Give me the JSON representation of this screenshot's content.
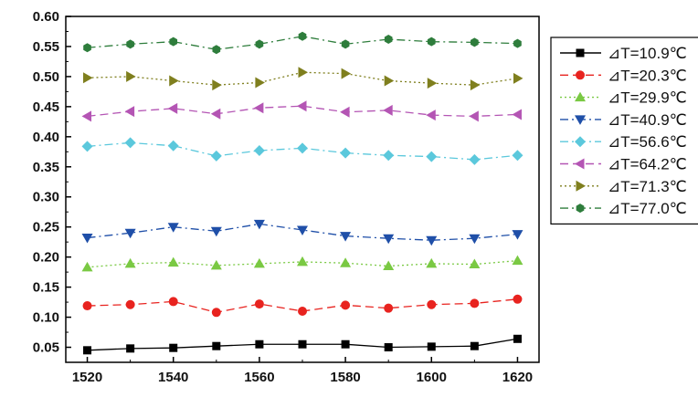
{
  "chart_data": {
    "type": "line",
    "title": "",
    "xlabel": "",
    "ylabel": "",
    "x": [
      1520,
      1530,
      1540,
      1550,
      1560,
      1570,
      1580,
      1590,
      1600,
      1610,
      1620
    ],
    "xlim": [
      1515,
      1625
    ],
    "ylim": [
      0.025,
      0.6
    ],
    "xticks": [
      1520,
      1540,
      1560,
      1580,
      1600,
      1620
    ],
    "yticks": [
      0.05,
      0.1,
      0.15,
      0.2,
      0.25,
      0.3,
      0.35,
      0.4,
      0.45,
      0.5,
      0.55,
      0.6
    ],
    "grid": false,
    "legend_position": "right",
    "series": [
      {
        "name": "⊿T=10.9℃",
        "color": "#000000",
        "marker": "square",
        "dash": "solid",
        "values": [
          0.045,
          0.048,
          0.049,
          0.052,
          0.055,
          0.055,
          0.055,
          0.05,
          0.051,
          0.052,
          0.064
        ]
      },
      {
        "name": "⊿T=20.3℃",
        "color": "#e8231f",
        "marker": "circle",
        "dash": "dash",
        "values": [
          0.119,
          0.121,
          0.126,
          0.108,
          0.122,
          0.11,
          0.12,
          0.115,
          0.121,
          0.123,
          0.13
        ]
      },
      {
        "name": "⊿T=29.9℃",
        "color": "#7ac943",
        "marker": "triangle-up",
        "dash": "dot",
        "values": [
          0.183,
          0.189,
          0.191,
          0.186,
          0.189,
          0.192,
          0.19,
          0.185,
          0.189,
          0.188,
          0.194
        ]
      },
      {
        "name": "⊿T=40.9℃",
        "color": "#1f4fa8",
        "marker": "triangle-down",
        "dash": "dashdot",
        "values": [
          0.232,
          0.24,
          0.25,
          0.243,
          0.255,
          0.245,
          0.235,
          0.231,
          0.228,
          0.231,
          0.238
        ]
      },
      {
        "name": "⊿T=56.6℃",
        "color": "#5bc8dc",
        "marker": "diamond",
        "dash": "dashdot",
        "values": [
          0.384,
          0.39,
          0.385,
          0.368,
          0.377,
          0.381,
          0.373,
          0.369,
          0.367,
          0.362,
          0.369
        ]
      },
      {
        "name": "⊿T=64.2℃",
        "color": "#b455b4",
        "marker": "triangle-left",
        "dash": "dash",
        "values": [
          0.434,
          0.442,
          0.447,
          0.438,
          0.448,
          0.451,
          0.441,
          0.444,
          0.436,
          0.434,
          0.437
        ]
      },
      {
        "name": "⊿T=71.3℃",
        "color": "#7f7f1e",
        "marker": "triangle-right",
        "dash": "dot",
        "values": [
          0.498,
          0.5,
          0.493,
          0.486,
          0.49,
          0.507,
          0.505,
          0.493,
          0.489,
          0.486,
          0.497
        ]
      },
      {
        "name": "⊿T=77.0℃",
        "color": "#2e7d3c",
        "marker": "hexagon",
        "dash": "dashdot",
        "values": [
          0.548,
          0.554,
          0.558,
          0.545,
          0.554,
          0.567,
          0.554,
          0.562,
          0.558,
          0.557,
          0.555
        ]
      }
    ]
  }
}
